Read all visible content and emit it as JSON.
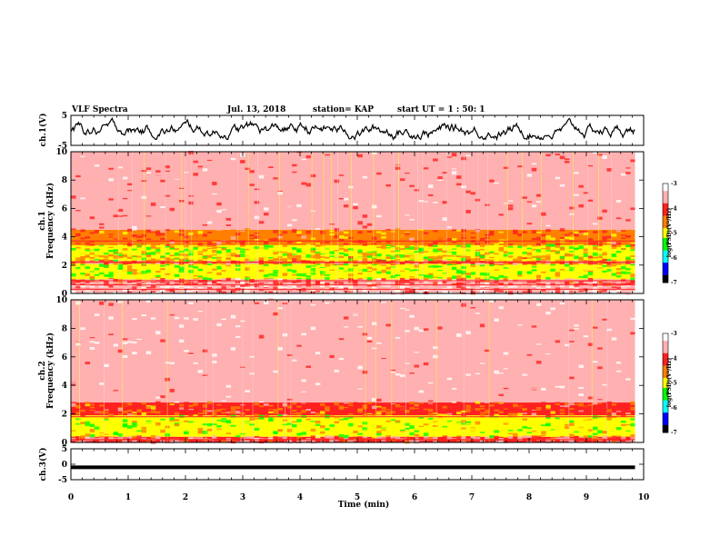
{
  "header": {
    "title": "VLF Spectra",
    "date": "Jul. 13, 2018",
    "station": "station= KAP",
    "start": "start  UT =  1 : 50: 1"
  },
  "axes": {
    "ch1_volt_label": "ch.1(V)",
    "ch3_volt_label": "ch.3(V)",
    "ch1_freq_label_line1": "ch.1",
    "ch1_freq_label_line2": "Frequency  (kHz)",
    "ch2_freq_label_line1": "ch.2",
    "ch2_freq_label_line2": "Frequency  (kHz)",
    "xlabel": "Time  (min)",
    "colorbar_label": "log(PSD)(V²/Hz)"
  },
  "colors": {
    "ink": "#000000",
    "ramp": [
      "#ffffff",
      "#ffb0b0",
      "#ff2020",
      "#ff8000",
      "#ffff00",
      "#00ff00",
      "#00ffff",
      "#0000ff",
      "#000000"
    ]
  },
  "chart_data": [
    {
      "type": "line",
      "panel": "ch.1(V)",
      "x_range": [
        0,
        9.85
      ],
      "xlim": [
        0,
        10
      ],
      "ylim": [
        -5,
        5
      ],
      "y_ticks": [
        "5",
        "-5"
      ],
      "approx_band": [
        -3,
        4
      ]
    },
    {
      "type": "heatmap",
      "panel": "ch.1 spectrogram",
      "xlim": [
        0,
        10
      ],
      "ylim": [
        0,
        10
      ],
      "y_ticks": [
        "0",
        "2",
        "4",
        "6",
        "8",
        "10"
      ],
      "colorbar": {
        "range": [
          -7,
          -3
        ],
        "ticks": [
          "-3",
          "-4",
          "-5",
          "-6",
          "-7"
        ]
      },
      "bands": [
        {
          "from": 0.0,
          "to": 0.6,
          "level": -3.4
        },
        {
          "from": 0.6,
          "to": 1.0,
          "level": -3.7
        },
        {
          "from": 1.0,
          "to": 2.1,
          "level": -5.1
        },
        {
          "from": 2.1,
          "to": 2.3,
          "level": -4.0
        },
        {
          "from": 2.3,
          "to": 2.7,
          "level": -4.8
        },
        {
          "from": 2.7,
          "to": 3.4,
          "level": -5.0
        },
        {
          "from": 3.4,
          "to": 4.5,
          "level": -4.3
        },
        {
          "from": 4.5,
          "to": 10.0,
          "level": -3.6
        }
      ],
      "lines_khz": [
        0.3,
        0.6,
        0.9,
        2.2,
        3.7
      ]
    },
    {
      "type": "heatmap",
      "panel": "ch.2 spectrogram",
      "xlim": [
        0,
        10
      ],
      "ylim": [
        0,
        10
      ],
      "y_ticks": [
        "0",
        "2",
        "4",
        "6",
        "8",
        "10"
      ],
      "colorbar": {
        "range": [
          -7,
          -3
        ],
        "ticks": [
          "-3",
          "-4",
          "-5",
          "-6",
          "-7"
        ]
      },
      "bands": [
        {
          "from": 0.0,
          "to": 0.4,
          "level": -3.8
        },
        {
          "from": 0.4,
          "to": 1.9,
          "level": -5.0
        },
        {
          "from": 1.9,
          "to": 2.8,
          "level": -4.2
        },
        {
          "from": 2.8,
          "to": 10.0,
          "level": -3.4
        }
      ],
      "lines_khz": [
        0.2,
        1.8
      ]
    },
    {
      "type": "line",
      "panel": "ch.3(V)",
      "xlim": [
        0,
        10
      ],
      "ylim": [
        -5,
        5
      ],
      "y_ticks": [
        "5",
        "0",
        "-5"
      ],
      "constant_value": -1,
      "x_range": [
        0,
        9.85
      ]
    }
  ],
  "x_ticks": [
    "0",
    "1",
    "2",
    "3",
    "4",
    "5",
    "6",
    "7",
    "8",
    "9",
    "10"
  ]
}
